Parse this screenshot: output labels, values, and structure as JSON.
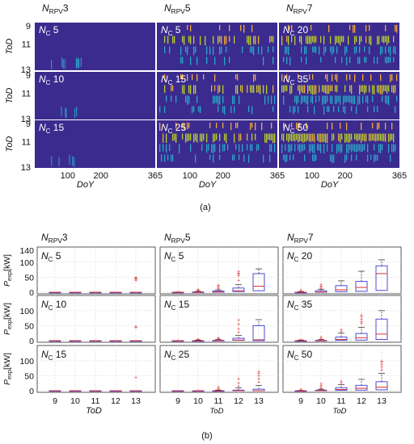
{
  "figure_a": {
    "label": "(a)",
    "column_headers": [
      {
        "base": "N",
        "sub": "RPV",
        "num": "3"
      },
      {
        "base": "N",
        "sub": "RPV",
        "num": "5"
      },
      {
        "base": "N",
        "sub": "RPV",
        "num": "7"
      }
    ],
    "panel_labels": [
      [
        "5",
        "5",
        "20"
      ],
      [
        "10",
        "15",
        "35"
      ],
      [
        "15",
        "25",
        "50"
      ]
    ],
    "y_axis_label": "ToD",
    "y_ticks": [
      "9",
      "11",
      "13"
    ],
    "x_axis_label": "DoY",
    "x_ticks": [
      "100",
      "200",
      "365"
    ],
    "colors": {
      "background": "#3b2b8f",
      "low": "#2aa6c9",
      "mid": "#b8d12a",
      "high": "#f2a93b"
    }
  },
  "figure_b": {
    "label": "(b)",
    "column_headers": [
      {
        "base": "N",
        "sub": "RPV",
        "num": "3"
      },
      {
        "base": "N",
        "sub": "RPV",
        "num": "5"
      },
      {
        "base": "N",
        "sub": "RPV",
        "num": "7"
      }
    ],
    "panel_labels": [
      [
        "5",
        "5",
        "20"
      ],
      [
        "10",
        "15",
        "35"
      ],
      [
        "15",
        "25",
        "50"
      ]
    ],
    "y_axis_label": "P",
    "y_axis_sub": "exp",
    "y_axis_unit": "[kW]",
    "y_ticks": [
      "0",
      "50",
      "100",
      "140"
    ],
    "x_axis_label": "ToD",
    "x_ticks": [
      "9",
      "10",
      "11",
      "12",
      "13"
    ],
    "colors": {
      "box": "#3b3bd6",
      "median": "#e03030",
      "outlier": "#e03030",
      "whisker": "#222222",
      "grid": "#dcdcdc"
    }
  },
  "chart_data": {
    "type": "box",
    "x": [
      9,
      10,
      11,
      12,
      13
    ],
    "ylim": [
      0,
      140
    ],
    "panels": [
      [
        {
          "boxes": [
            {
              "q1": 0,
              "median": 0,
              "q3": 0,
              "whisker_max": 0,
              "outliers": []
            },
            {
              "q1": 0,
              "median": 0,
              "q3": 0,
              "whisker_max": 0,
              "outliers": []
            },
            {
              "q1": 0,
              "median": 0,
              "q3": 0,
              "whisker_max": 0,
              "outliers": []
            },
            {
              "q1": 0,
              "median": 0,
              "q3": 0,
              "whisker_max": 0,
              "outliers": []
            },
            {
              "q1": 0,
              "median": 0,
              "q3": 0,
              "whisker_max": 0,
              "outliers": [
                40,
                44,
                46,
                48,
                50
              ]
            }
          ]
        },
        {
          "boxes": [
            {
              "q1": 0,
              "median": 0,
              "q3": 0,
              "whisker_max": 1,
              "outliers": [
                2
              ]
            },
            {
              "q1": 0,
              "median": 0,
              "q3": 1,
              "whisker_max": 3,
              "outliers": [
                5,
                8,
                10
              ]
            },
            {
              "q1": 0,
              "median": 1,
              "q3": 4,
              "whisker_max": 8,
              "outliers": [
                12,
                16,
                20,
                24
              ]
            },
            {
              "q1": 2,
              "median": 5,
              "q3": 14,
              "whisker_max": 25,
              "outliers": [
                40,
                55,
                60,
                65,
                70
              ]
            },
            {
              "q1": 5,
              "median": 20,
              "q3": 62,
              "whisker_max": 78,
              "outliers": []
            }
          ]
        },
        {
          "boxes": [
            {
              "q1": 0,
              "median": 0,
              "q3": 0,
              "whisker_max": 2,
              "outliers": [
                4,
                8
              ]
            },
            {
              "q1": 0,
              "median": 1,
              "q3": 5,
              "whisker_max": 10,
              "outliers": [
                14,
                18,
                22,
                26
              ]
            },
            {
              "q1": 2,
              "median": 8,
              "q3": 22,
              "whisker_max": 38,
              "outliers": []
            },
            {
              "q1": 3,
              "median": 16,
              "q3": 36,
              "whisker_max": 70,
              "outliers": []
            },
            {
              "q1": 6,
              "median": 62,
              "q3": 88,
              "whisker_max": 108,
              "outliers": []
            }
          ]
        }
      ],
      [
        {
          "boxes": [
            {
              "q1": 0,
              "median": 0,
              "q3": 0,
              "whisker_max": 0,
              "outliers": []
            },
            {
              "q1": 0,
              "median": 0,
              "q3": 0,
              "whisker_max": 0,
              "outliers": []
            },
            {
              "q1": 0,
              "median": 0,
              "q3": 0,
              "whisker_max": 0,
              "outliers": []
            },
            {
              "q1": 0,
              "median": 0,
              "q3": 0,
              "whisker_max": 0,
              "outliers": []
            },
            {
              "q1": 0,
              "median": 0,
              "q3": 0,
              "whisker_max": 0,
              "outliers": [
                45,
                47
              ]
            }
          ]
        },
        {
          "boxes": [
            {
              "q1": 0,
              "median": 0,
              "q3": 0,
              "whisker_max": 0,
              "outliers": [
                1
              ]
            },
            {
              "q1": 0,
              "median": 0,
              "q3": 0,
              "whisker_max": 2,
              "outliers": [
                4,
                6
              ]
            },
            {
              "q1": 0,
              "median": 0,
              "q3": 1,
              "whisker_max": 4,
              "outliers": [
                6,
                8,
                10
              ]
            },
            {
              "q1": 1,
              "median": 2,
              "q3": 8,
              "whisker_max": 18,
              "outliers": [
                28,
                40,
                55,
                68
              ]
            },
            {
              "q1": 0,
              "median": 3,
              "q3": 50,
              "whisker_max": 70,
              "outliers": []
            }
          ]
        },
        {
          "boxes": [
            {
              "q1": 0,
              "median": 0,
              "q3": 0,
              "whisker_max": 2,
              "outliers": [
                4
              ]
            },
            {
              "q1": 0,
              "median": 0,
              "q3": 1,
              "whisker_max": 4,
              "outliers": [
                6,
                8,
                12
              ]
            },
            {
              "q1": 1,
              "median": 4,
              "q3": 12,
              "whisker_max": 25,
              "outliers": [
                32,
                36
              ]
            },
            {
              "q1": 2,
              "median": 10,
              "q3": 24,
              "whisker_max": 45,
              "outliers": [
                58,
                65,
                72,
                80,
                86
              ]
            },
            {
              "q1": 4,
              "median": 22,
              "q3": 72,
              "whisker_max": 100,
              "outliers": []
            }
          ]
        }
      ],
      [
        {
          "boxes": [
            {
              "q1": 0,
              "median": 0,
              "q3": 0,
              "whisker_max": 0,
              "outliers": []
            },
            {
              "q1": 0,
              "median": 0,
              "q3": 0,
              "whisker_max": 0,
              "outliers": []
            },
            {
              "q1": 0,
              "median": 0,
              "q3": 0,
              "whisker_max": 0,
              "outliers": []
            },
            {
              "q1": 0,
              "median": 0,
              "q3": 0,
              "whisker_max": 0,
              "outliers": []
            },
            {
              "q1": 0,
              "median": 0,
              "q3": 0,
              "whisker_max": 0,
              "outliers": [
                44
              ]
            }
          ]
        },
        {
          "boxes": [
            {
              "q1": 0,
              "median": 0,
              "q3": 0,
              "whisker_max": 0,
              "outliers": []
            },
            {
              "q1": 0,
              "median": 0,
              "q3": 0,
              "whisker_max": 0,
              "outliers": [
                2
              ]
            },
            {
              "q1": 0,
              "median": 0,
              "q3": 0,
              "whisker_max": 2,
              "outliers": [
                4,
                8,
                12
              ]
            },
            {
              "q1": 0,
              "median": 0,
              "q3": 2,
              "whisker_max": 10,
              "outliers": [
                15,
                25,
                40
              ]
            },
            {
              "q1": 0,
              "median": 0,
              "q3": 5,
              "whisker_max": 18,
              "outliers": [
                30,
                40,
                50,
                58,
                64
              ]
            }
          ]
        },
        {
          "boxes": [
            {
              "q1": 0,
              "median": 0,
              "q3": 0,
              "whisker_max": 1,
              "outliers": [
                3,
                5
              ]
            },
            {
              "q1": 0,
              "median": 0,
              "q3": 2,
              "whisker_max": 5,
              "outliers": [
                8,
                12,
                18,
                24
              ]
            },
            {
              "q1": 1,
              "median": 4,
              "q3": 10,
              "whisker_max": 20,
              "outliers": [
                26,
                32
              ]
            },
            {
              "q1": 2,
              "median": 8,
              "q3": 18,
              "whisker_max": 38,
              "outliers": []
            },
            {
              "q1": 3,
              "median": 12,
              "q3": 30,
              "whisker_max": 58,
              "outliers": [
                70,
                80,
                88,
                95,
                100
              ]
            }
          ]
        }
      ]
    ]
  }
}
